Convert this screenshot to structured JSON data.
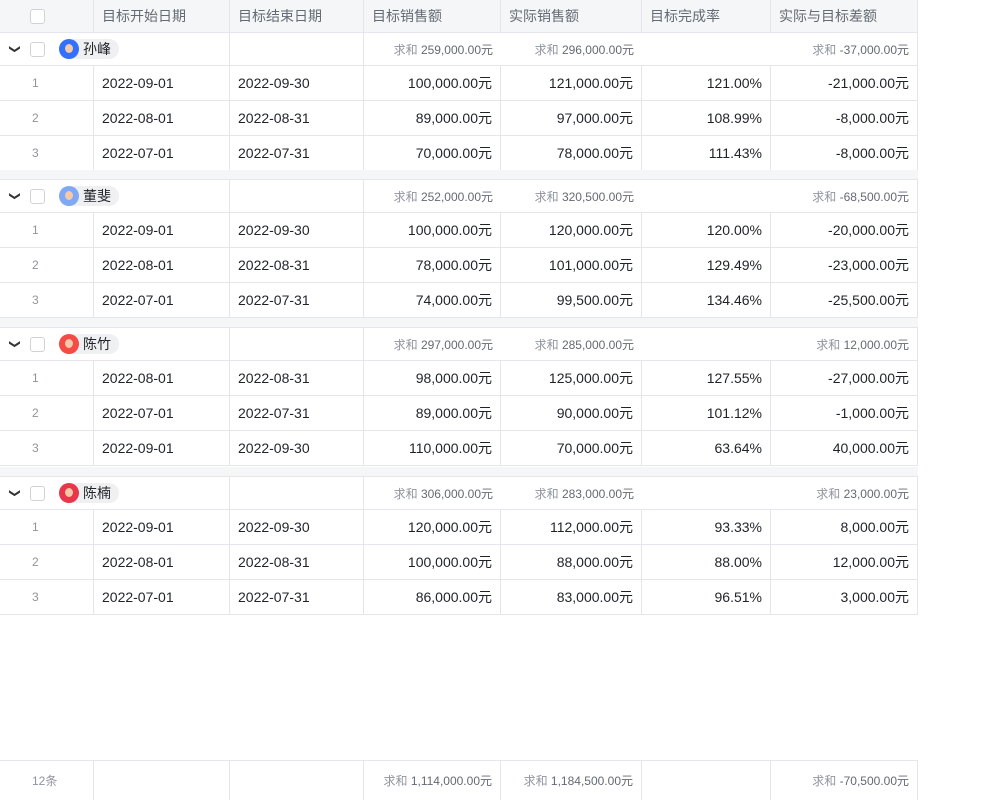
{
  "headers": [
    "目标开始日期",
    "目标结束日期",
    "目标销售额",
    "实际销售额",
    "目标完成率",
    "实际与目标差额"
  ],
  "sum_label": "求和",
  "groups": [
    {
      "name": "孙峰",
      "avatar_color": "#3370ff",
      "sum_target": "259,000.00元",
      "sum_actual": "296,000.00元",
      "sum_diff": "-37,000.00元",
      "rows": [
        [
          "1",
          "2022-09-01",
          "2022-09-30",
          "100,000.00元",
          "121,000.00元",
          "121.00%",
          "-21,000.00元"
        ],
        [
          "2",
          "2022-08-01",
          "2022-08-31",
          "89,000.00元",
          "97,000.00元",
          "108.99%",
          "-8,000.00元"
        ],
        [
          "3",
          "2022-07-01",
          "2022-07-31",
          "70,000.00元",
          "78,000.00元",
          "111.43%",
          "-8,000.00元"
        ]
      ]
    },
    {
      "name": "董斐",
      "avatar_color": "#7fa8f5",
      "sum_target": "252,000.00元",
      "sum_actual": "320,500.00元",
      "sum_diff": "-68,500.00元",
      "rows": [
        [
          "1",
          "2022-09-01",
          "2022-09-30",
          "100,000.00元",
          "120,000.00元",
          "120.00%",
          "-20,000.00元"
        ],
        [
          "2",
          "2022-08-01",
          "2022-08-31",
          "78,000.00元",
          "101,000.00元",
          "129.49%",
          "-23,000.00元"
        ],
        [
          "3",
          "2022-07-01",
          "2022-07-31",
          "74,000.00元",
          "99,500.00元",
          "134.46%",
          "-25,500.00元"
        ]
      ]
    },
    {
      "name": "陈竹",
      "avatar_color": "#f54a45",
      "sum_target": "297,000.00元",
      "sum_actual": "285,000.00元",
      "sum_diff": "12,000.00元",
      "rows": [
        [
          "1",
          "2022-08-01",
          "2022-08-31",
          "98,000.00元",
          "125,000.00元",
          "127.55%",
          "-27,000.00元"
        ],
        [
          "2",
          "2022-07-01",
          "2022-07-31",
          "89,000.00元",
          "90,000.00元",
          "101.12%",
          "-1,000.00元"
        ],
        [
          "3",
          "2022-09-01",
          "2022-09-30",
          "110,000.00元",
          "70,000.00元",
          "63.64%",
          "40,000.00元"
        ]
      ]
    },
    {
      "name": "陈楠",
      "avatar_color": "#e8364a",
      "sum_target": "306,000.00元",
      "sum_actual": "283,000.00元",
      "sum_diff": "23,000.00元",
      "rows": [
        [
          "1",
          "2022-09-01",
          "2022-09-30",
          "120,000.00元",
          "112,000.00元",
          "93.33%",
          "8,000.00元"
        ],
        [
          "2",
          "2022-08-01",
          "2022-08-31",
          "100,000.00元",
          "88,000.00元",
          "88.00%",
          "12,000.00元"
        ],
        [
          "3",
          "2022-07-01",
          "2022-07-31",
          "86,000.00元",
          "83,000.00元",
          "96.51%",
          "3,000.00元"
        ]
      ]
    }
  ],
  "footer": {
    "count": "12条",
    "sum_target": "1,114,000.00元",
    "sum_actual": "1,184,500.00元",
    "sum_diff": "-70,500.00元"
  }
}
